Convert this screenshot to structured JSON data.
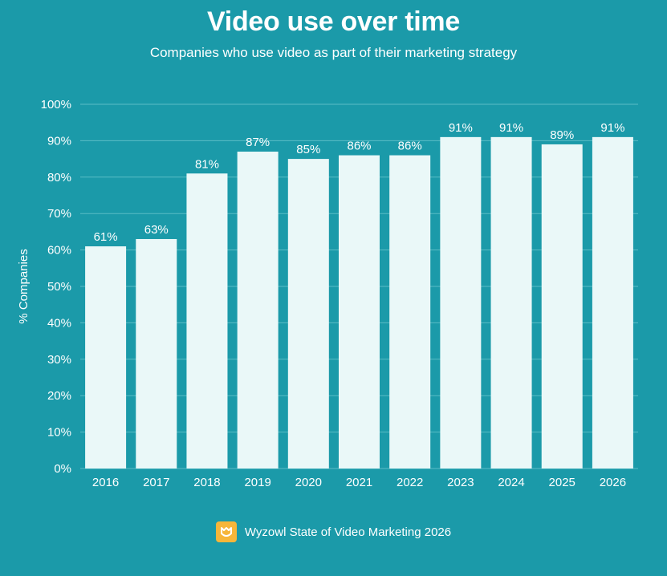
{
  "header": {
    "title": "Video use over time",
    "subtitle": "Companies who use video as part of their marketing strategy"
  },
  "footer": {
    "source": "Wyzowl State of Video Marketing 2026"
  },
  "colors": {
    "background": "#1b9aa9",
    "bar": "#eaf8f8",
    "text": "#ffffff",
    "logo": "#f6b63a"
  },
  "chart_data": {
    "type": "bar",
    "categories": [
      "2016",
      "2017",
      "2018",
      "2019",
      "2020",
      "2021",
      "2022",
      "2023",
      "2024",
      "2025",
      "2026"
    ],
    "values": [
      61,
      63,
      81,
      87,
      85,
      86,
      86,
      91,
      91,
      89,
      91
    ],
    "value_labels": [
      "61%",
      "63%",
      "81%",
      "87%",
      "85%",
      "86%",
      "86%",
      "91%",
      "91%",
      "89%",
      "91%"
    ],
    "ylabel": "% Companies",
    "ylim": [
      0,
      100
    ],
    "yticks": [
      "0%",
      "10%",
      "20%",
      "30%",
      "40%",
      "50%",
      "60%",
      "70%",
      "80%",
      "90%",
      "100%"
    ],
    "grid": true,
    "legend": "none"
  }
}
